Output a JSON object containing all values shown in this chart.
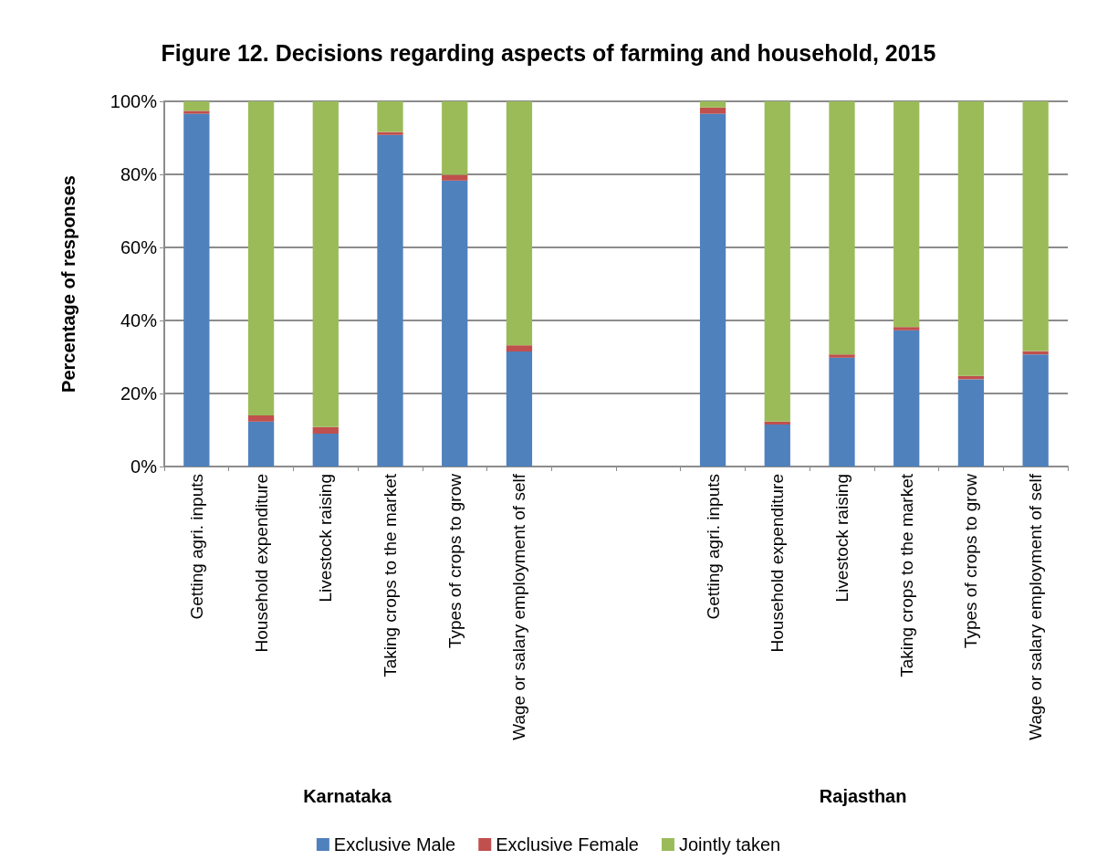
{
  "chart_data": {
    "type": "bar",
    "stacked": true,
    "title": "Figure 12. Decisions regarding aspects of farming and household, 2015",
    "ylabel": "Percentage of responses",
    "categories": [
      "Getting agri. inputs",
      "Household expenditure",
      "Livestock raising",
      "Taking crops to the market",
      "Types of crops to grow",
      "Wage or salary employment of self",
      null,
      null,
      "Getting agri. inputs",
      "Household expenditure",
      "Livestock raising",
      "Taking crops to the market",
      "Types of crops to grow",
      "Wage or salary employment of self"
    ],
    "series": [
      {
        "name": "Exclusive Male",
        "color": "#4f81bd",
        "values": [
          96.6,
          12.3,
          9,
          90.8,
          78.3,
          31.5,
          null,
          null,
          96.6,
          11.5,
          29.8,
          37.3,
          23.9,
          30.7
        ]
      },
      {
        "name": "Exclusive Female",
        "color": "#c0504d",
        "values": [
          0.8,
          1.7,
          1.8,
          0.8,
          1.6,
          1.7,
          null,
          null,
          1.7,
          0.8,
          0.9,
          0.9,
          0.9,
          0.9
        ]
      },
      {
        "name": "Jointly taken",
        "color": "#9bbb59",
        "values": [
          2.6,
          86,
          89.2,
          8.4,
          20.1,
          66.8,
          null,
          null,
          1.7,
          87.7,
          69.3,
          61.8,
          75.2,
          68.4
        ]
      }
    ],
    "annotations": [
      "Karnataka",
      "Rajasthan"
    ],
    "ylim": [
      0,
      100
    ],
    "yticks": [
      {
        "value": 0,
        "label": "0%"
      },
      {
        "value": 20,
        "label": "20%"
      },
      {
        "value": 40,
        "label": "40%"
      },
      {
        "value": 60,
        "label": "60%"
      },
      {
        "value": 80,
        "label": "80%"
      },
      {
        "value": 100,
        "label": "100%"
      }
    ],
    "grid": "y",
    "legend": "bottom"
  }
}
